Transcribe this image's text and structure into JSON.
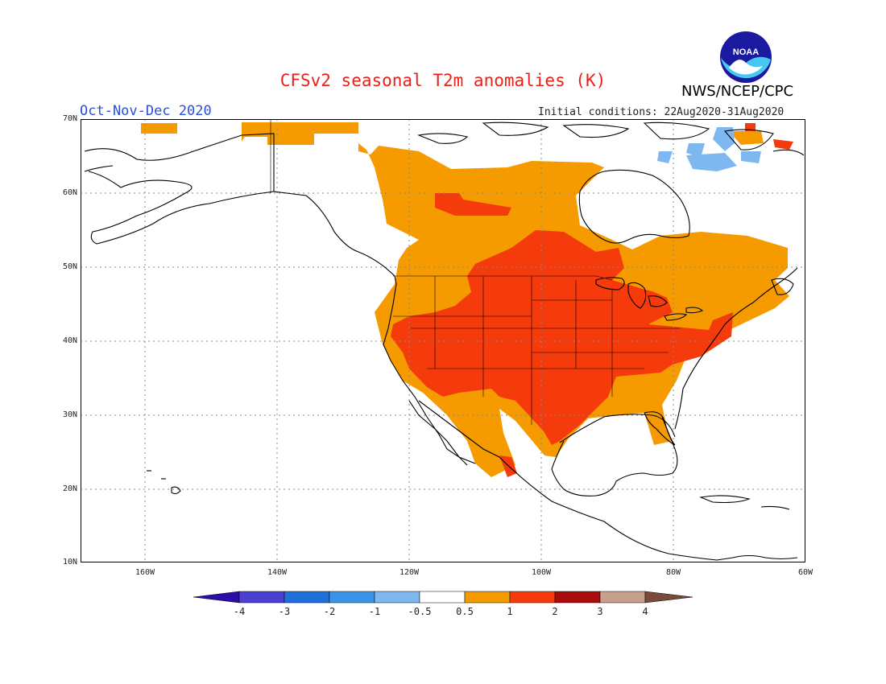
{
  "header": {
    "title": "CFSv2 seasonal T2m anomalies (K)",
    "org": "NWS/NCEP/CPC",
    "season": "Oct-Nov-Dec 2020",
    "initial_conditions": "Initial conditions: 22Aug2020-31Aug2020",
    "logo_text": "NOAA"
  },
  "axes": {
    "lat_labels": [
      "70N",
      "60N",
      "50N",
      "40N",
      "30N",
      "20N",
      "10N"
    ],
    "lon_labels": [
      "160W",
      "140W",
      "120W",
      "100W",
      "80W",
      "60W"
    ]
  },
  "colorbar": {
    "labels": [
      "-4",
      "-3",
      "-2",
      "-1",
      "-0.5",
      "0.5",
      "1",
      "2",
      "3",
      "4"
    ],
    "colors": [
      "#2d0ea8",
      "#4a3fd0",
      "#1f6fd8",
      "#3a93e8",
      "#7fb8f0",
      "#ffffff",
      "#f59b00",
      "#f53a0c",
      "#a80b0b",
      "#c9a08e",
      "#7a4a3a"
    ]
  },
  "anomaly_colors": {
    "warm_0_5_1": "#f59b00",
    "warm_1_2": "#f53a0c",
    "warm_2_3": "#a80b0b",
    "cool_m1_m0_5": "#7fb8f0"
  }
}
